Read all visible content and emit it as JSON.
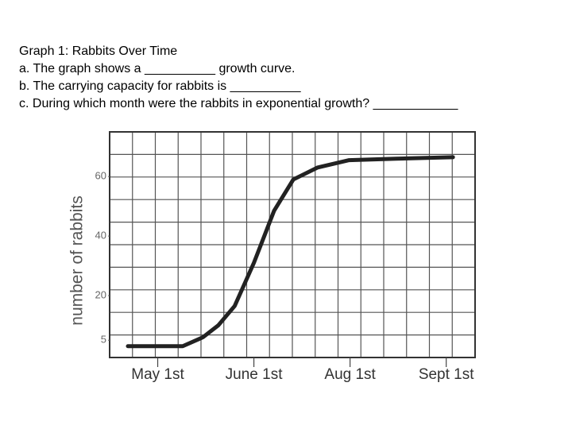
{
  "worksheet": {
    "heading": "Graph 1: Rabbits Over Time",
    "questions": [
      "a. The graph shows a __________ growth curve.",
      "b. The carrying capacity for rabbits is __________",
      "c. During which month were the rabbits in exponential growth? ____________"
    ]
  },
  "chart_data": {
    "type": "line",
    "y_label": "number of rabbits",
    "x": [
      -0.31,
      0.26,
      0.47,
      0.63,
      0.8,
      1.0,
      1.21,
      1.41,
      1.66,
      1.99,
      2.48,
      3.07
    ],
    "values": [
      3,
      3,
      6,
      10,
      16.5,
      31,
      48.5,
      59,
      63,
      65.5,
      66,
      66.5
    ],
    "color": "#222222",
    "xlim": [
      -0.5,
      3.3
    ],
    "xticks": [
      {
        "value": 0,
        "label": "May 1st"
      },
      {
        "value": 1,
        "label": "June 1st"
      },
      {
        "value": 2,
        "label": "Aug 1st"
      },
      {
        "value": 3,
        "label": "Sept 1st"
      }
    ],
    "ylim": [
      0,
      75
    ],
    "yticks": [
      5,
      20,
      40,
      60
    ],
    "grid": true
  }
}
